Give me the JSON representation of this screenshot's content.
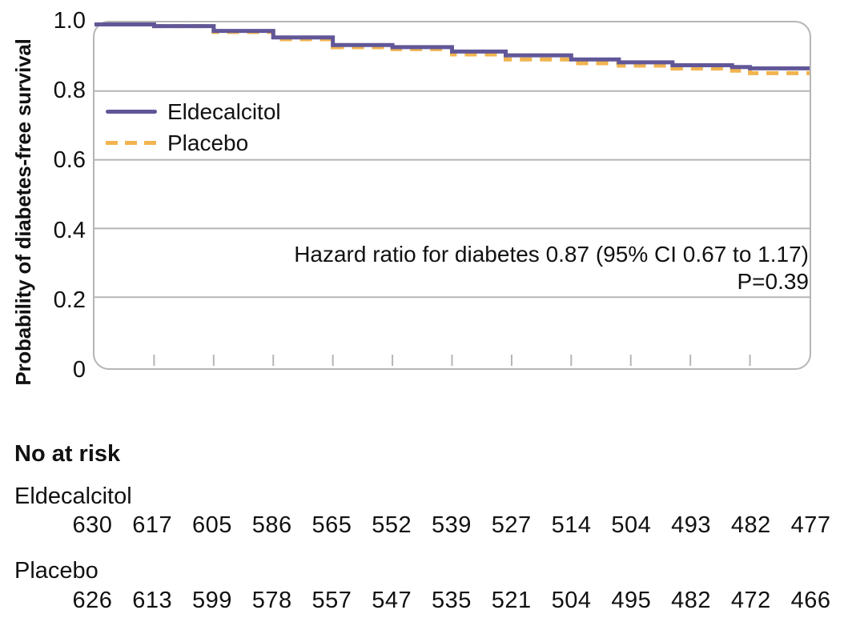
{
  "chart_data": {
    "type": "line",
    "subtype": "kaplan_meier_step",
    "title": "",
    "xlabel": "",
    "ylabel": "Probability of diabetes-free survival",
    "ylim": [
      0,
      1.0
    ],
    "x_range": [
      0,
      12
    ],
    "x_tick_count": 13,
    "x_tick_labels_visible": false,
    "y_tick_labels": [
      "1.0",
      "0.8",
      "0.6",
      "0.4",
      "0.2",
      "0"
    ],
    "grid": "horizontal",
    "grid_color": "#b5b5b5",
    "legend_position": "inside-upper-left",
    "annotation": "Hazard ratio for diabetes 0.87 (95% CI 0.67 to 1.17)",
    "annotation_line2": "P=0.39",
    "series": [
      {
        "name": "Eldecalcitol",
        "color": "#615798",
        "line_style": "solid",
        "points": [
          [
            0,
            1.0
          ],
          [
            1,
            0.995
          ],
          [
            2,
            0.981
          ],
          [
            3,
            0.962
          ],
          [
            4,
            0.94
          ],
          [
            5,
            0.934
          ],
          [
            6,
            0.921
          ],
          [
            6.9,
            0.91
          ],
          [
            8,
            0.898
          ],
          [
            8.8,
            0.8895
          ],
          [
            9.7,
            0.881
          ],
          [
            10.7,
            0.876
          ],
          [
            11,
            0.872
          ],
          [
            12,
            0.872
          ]
        ]
      },
      {
        "name": "Placebo",
        "color": "#f1b44f",
        "line_style": "dashed",
        "points": [
          [
            0,
            1.0
          ],
          [
            1,
            0.995
          ],
          [
            2,
            0.978
          ],
          [
            3,
            0.957
          ],
          [
            4,
            0.9335
          ],
          [
            5,
            0.928
          ],
          [
            6,
            0.9125
          ],
          [
            6.9,
            0.898
          ],
          [
            8,
            0.887
          ],
          [
            8.8,
            0.88
          ],
          [
            9.7,
            0.8715
          ],
          [
            10.7,
            0.8655
          ],
          [
            11,
            0.858
          ],
          [
            12,
            0.858
          ]
        ]
      }
    ]
  },
  "risk_table": {
    "heading": "No at risk",
    "rows": [
      {
        "label": "Eldecalcitol",
        "counts": [
          "630",
          "617",
          "605",
          "586",
          "565",
          "552",
          "539",
          "527",
          "514",
          "504",
          "493",
          "482",
          "477"
        ]
      },
      {
        "label": "Placebo",
        "counts": [
          "626",
          "613",
          "599",
          "578",
          "557",
          "547",
          "535",
          "521",
          "504",
          "495",
          "482",
          "472",
          "466"
        ]
      }
    ]
  },
  "colors": {
    "eldecalcitol": "#615798",
    "placebo": "#f1b44f",
    "grid": "#b5b5b5",
    "text": "#111111"
  }
}
